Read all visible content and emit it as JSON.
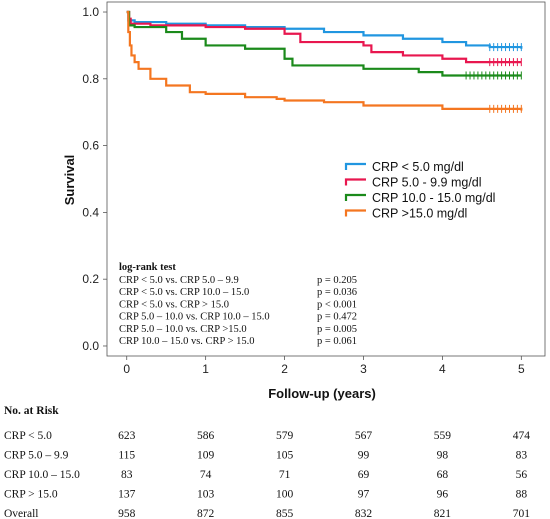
{
  "chart_data": {
    "type": "line",
    "title": "",
    "xlabel": "Follow-up (years)",
    "ylabel": "Survival",
    "xlim": [
      -0.25,
      5.3
    ],
    "ylim": [
      -0.03,
      1.03
    ],
    "xticks": [
      "0",
      "1",
      "2",
      "3",
      "4",
      "5"
    ],
    "yticks": [
      "0.0",
      "0.2",
      "0.4",
      "0.6",
      "0.8",
      "1.0"
    ],
    "grid": false,
    "legend_position": "middle-right",
    "series": [
      {
        "name": "CRP < 5.0 mg/dl",
        "color": "#2196e0",
        "points": [
          [
            0,
            1.0
          ],
          [
            0.02,
            0.975
          ],
          [
            0.1,
            0.97
          ],
          [
            0.5,
            0.965
          ],
          [
            1.0,
            0.96
          ],
          [
            1.5,
            0.955
          ],
          [
            2.0,
            0.95
          ],
          [
            2.5,
            0.94
          ],
          [
            3.0,
            0.93
          ],
          [
            3.5,
            0.92
          ],
          [
            4.0,
            0.91
          ],
          [
            4.3,
            0.9
          ],
          [
            4.6,
            0.895
          ],
          [
            5.0,
            0.89
          ]
        ],
        "censored_from": 4.6
      },
      {
        "name": "CRP 5.0 - 9.9 mg/dl",
        "color": "#e8174f",
        "points": [
          [
            0,
            1.0
          ],
          [
            0.03,
            0.98
          ],
          [
            0.05,
            0.965
          ],
          [
            0.3,
            0.96
          ],
          [
            1.0,
            0.955
          ],
          [
            1.5,
            0.95
          ],
          [
            2.0,
            0.935
          ],
          [
            2.2,
            0.91
          ],
          [
            3.0,
            0.9
          ],
          [
            3.1,
            0.88
          ],
          [
            3.5,
            0.87
          ],
          [
            4.0,
            0.86
          ],
          [
            4.3,
            0.85
          ],
          [
            5.0,
            0.85
          ]
        ],
        "censored_from": 4.6
      },
      {
        "name": "CRP 10.0 - 15.0 mg/dl",
        "color": "#1b8a1b",
        "points": [
          [
            0,
            1.0
          ],
          [
            0.03,
            0.96
          ],
          [
            0.1,
            0.955
          ],
          [
            0.5,
            0.94
          ],
          [
            0.7,
            0.92
          ],
          [
            1.0,
            0.9
          ],
          [
            1.5,
            0.89
          ],
          [
            2.0,
            0.86
          ],
          [
            2.1,
            0.84
          ],
          [
            3.0,
            0.83
          ],
          [
            3.5,
            0.83
          ],
          [
            3.7,
            0.82
          ],
          [
            4.0,
            0.81
          ],
          [
            5.0,
            0.81
          ]
        ],
        "censored_from": 4.3
      },
      {
        "name": "CRP >15.0 mg/dl",
        "color": "#f47620",
        "points": [
          [
            0,
            1.0
          ],
          [
            0.02,
            0.94
          ],
          [
            0.04,
            0.9
          ],
          [
            0.06,
            0.87
          ],
          [
            0.1,
            0.85
          ],
          [
            0.15,
            0.83
          ],
          [
            0.3,
            0.8
          ],
          [
            0.5,
            0.78
          ],
          [
            0.8,
            0.76
          ],
          [
            1.0,
            0.755
          ],
          [
            1.5,
            0.745
          ],
          [
            1.9,
            0.74
          ],
          [
            2.0,
            0.735
          ],
          [
            2.5,
            0.73
          ],
          [
            3.0,
            0.72
          ],
          [
            3.5,
            0.72
          ],
          [
            4.0,
            0.71
          ],
          [
            5.0,
            0.705
          ]
        ],
        "censored_from": 4.6
      }
    ],
    "logrank": {
      "title": "log-rank test",
      "rows": [
        {
          "comparison": "CRP < 5.0 vs. CRP 5.0 – 9.9",
          "p": "p = 0.205"
        },
        {
          "comparison": "CRP < 5.0 vs. CRP 10.0 – 15.0",
          "p": "p = 0.036"
        },
        {
          "comparison": "CRP < 5.0 vs. CRP > 15.0",
          "p": "p < 0.001"
        },
        {
          "comparison": "CRP 5.0 – 10.0 vs. CRP 10.0 – 15.0",
          "p": "p = 0.472"
        },
        {
          "comparison": "CRP 5.0 – 10.0 vs. CRP >15.0",
          "p": "p = 0.005"
        },
        {
          "comparison": "CRP 10.0 – 15.0 vs. CRP > 15.0",
          "p": "p = 0.061"
        }
      ]
    },
    "risk_table": {
      "title": "No. at Risk",
      "rows": [
        {
          "label": "CRP < 5.0",
          "values": [
            "623",
            "586",
            "579",
            "567",
            "559",
            "474"
          ]
        },
        {
          "label": "CRP 5.0 – 9.9",
          "values": [
            "115",
            "109",
            "105",
            "99",
            "98",
            "83"
          ]
        },
        {
          "label": "CRP 10.0 – 15.0",
          "values": [
            "83",
            "74",
            "71",
            "69",
            "68",
            "56"
          ]
        },
        {
          "label": "CRP > 15.0",
          "values": [
            "137",
            "103",
            "100",
            "97",
            "96",
            "88"
          ]
        },
        {
          "label": "Overall",
          "values": [
            "958",
            "872",
            "855",
            "832",
            "821",
            "701"
          ]
        }
      ]
    }
  }
}
